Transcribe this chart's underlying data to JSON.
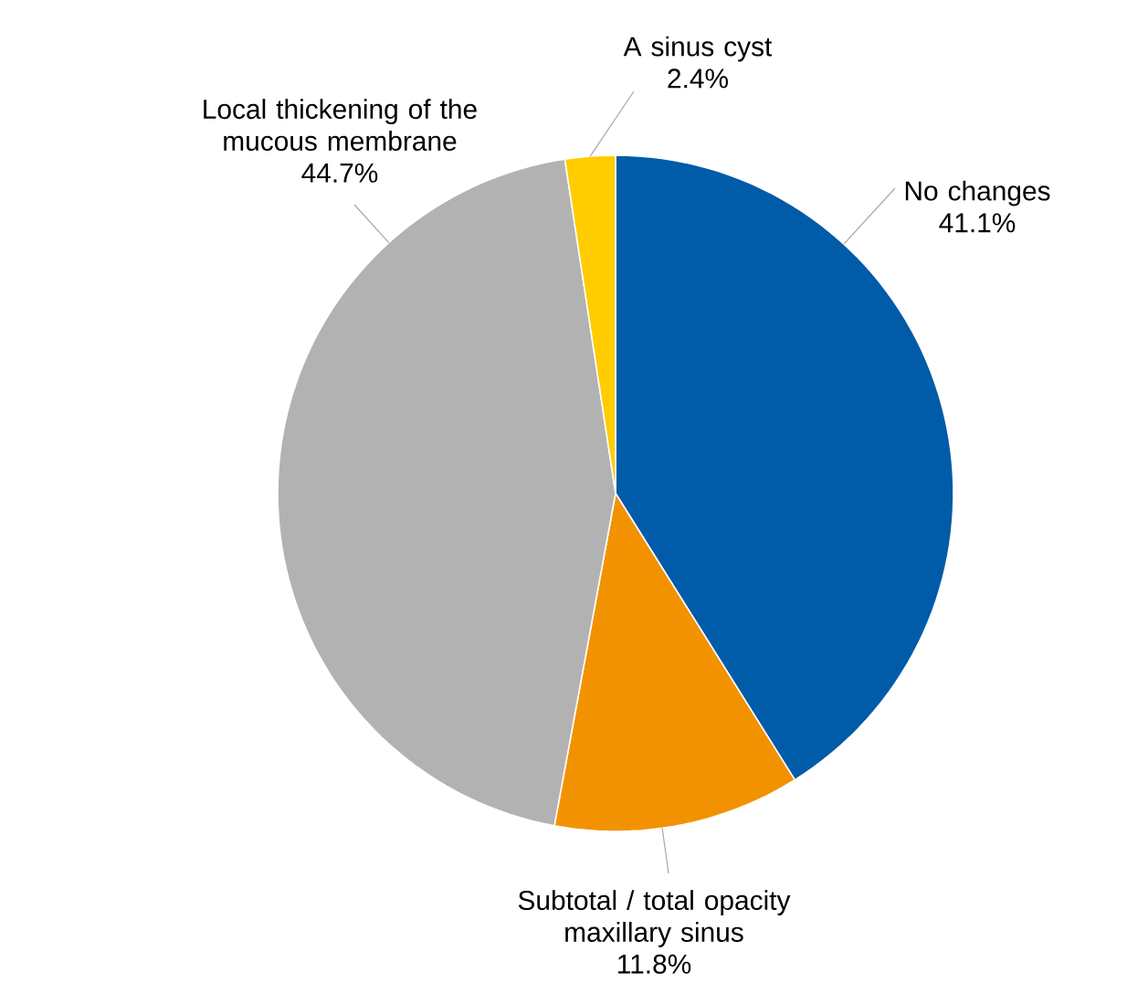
{
  "chart_data": {
    "type": "pie",
    "categories": [
      "No changes",
      "Subtotal / total opacity maxillary sinus",
      "Local thickening of the mucous membrane",
      "A sinus cyst"
    ],
    "values": [
      41.1,
      11.8,
      44.7,
      2.4
    ],
    "colors": [
      "#005ba9",
      "#f39200",
      "#b2b2b2",
      "#ffcc00"
    ],
    "value_labels": [
      "41.1%",
      "11.8%",
      "44.7%",
      "2.4%"
    ]
  }
}
